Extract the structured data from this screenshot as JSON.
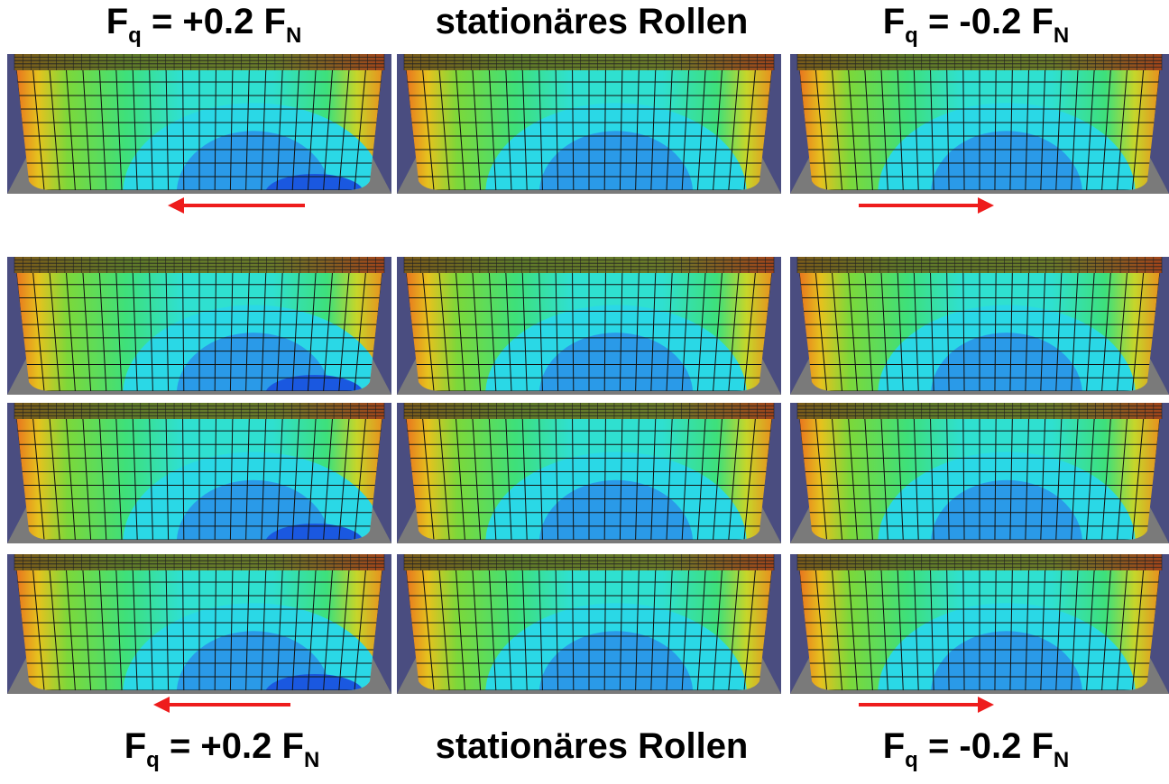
{
  "top_labels": [
    [
      {
        "text": "F"
      },
      {
        "sub": "q"
      },
      {
        "text": " = +0.2 F"
      },
      {
        "sub": "N"
      }
    ],
    [
      {
        "text": "stationäres Rollen"
      }
    ],
    [
      {
        "text": "F"
      },
      {
        "sub": "q"
      },
      {
        "text": " = -0.2 F"
      },
      {
        "sub": "N"
      }
    ]
  ],
  "bottom_labels": [
    [
      {
        "text": "F"
      },
      {
        "sub": "q"
      },
      {
        "text": " = +0.2 F"
      },
      {
        "sub": "N"
      }
    ],
    [
      {
        "text": "stationäres Rollen"
      }
    ],
    [
      {
        "text": "F"
      },
      {
        "sub": "q"
      },
      {
        "text": " = -0.2 F"
      },
      {
        "sub": "N"
      }
    ]
  ]
}
